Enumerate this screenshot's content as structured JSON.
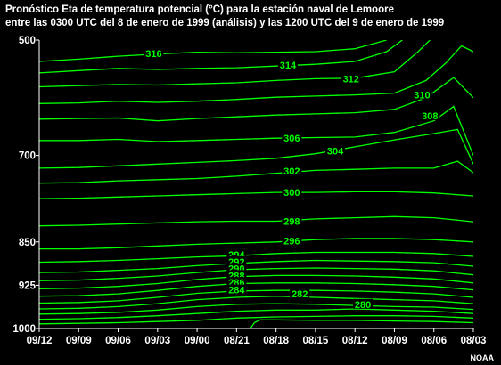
{
  "chart_data": {
    "type": "contour",
    "title_lines": [
      "Pronóstico Eta de temperatura potencial (°C) para la estación naval de Lemoore",
      "entre las 0300 UTC del 8 de enero de 1999 (análisis) y las 1200 UTC del 9 de enero de 1999"
    ],
    "x_tick_labels": [
      "09/12",
      "09/09",
      "09/06",
      "09/03",
      "09/00",
      "08/21",
      "08/18",
      "08/15",
      "08/12",
      "08/09",
      "08/06",
      "08/03"
    ],
    "y_tick_labels": [
      {
        "label": "500",
        "p": 500
      },
      {
        "label": "700",
        "p": 700
      },
      {
        "label": "850",
        "p": 850
      },
      {
        "label": "925",
        "p": 925
      },
      {
        "label": "1000",
        "p": 1000
      }
    ],
    "y_range": [
      500,
      1000
    ],
    "x_index_range": [
      0,
      11
    ],
    "colors": {
      "contour": "#00ff00",
      "axes": "#ffffff",
      "background": "#000000"
    },
    "contours": [
      {
        "label": "316",
        "label_at": [
          2.9,
          523
        ],
        "points": [
          [
            0,
            537
          ],
          [
            1,
            533
          ],
          [
            2,
            528
          ],
          [
            3,
            524
          ],
          [
            4,
            521
          ],
          [
            5,
            522
          ],
          [
            6,
            521
          ],
          [
            7,
            520
          ],
          [
            8,
            515
          ],
          [
            8.8,
            500
          ]
        ]
      },
      {
        "label": "314",
        "label_at": [
          6.3,
          543
        ],
        "points": [
          [
            0,
            557
          ],
          [
            1,
            553
          ],
          [
            2,
            549
          ],
          [
            3,
            551
          ],
          [
            4,
            549
          ],
          [
            5,
            548
          ],
          [
            6,
            545
          ],
          [
            7,
            542
          ],
          [
            8,
            537
          ],
          [
            8.8,
            520
          ],
          [
            9.2,
            500
          ]
        ]
      },
      {
        "label": "312",
        "label_at": [
          7.9,
          567
        ],
        "points": [
          [
            0,
            581
          ],
          [
            1,
            579
          ],
          [
            2,
            577
          ],
          [
            3,
            578
          ],
          [
            4,
            576
          ],
          [
            5,
            574
          ],
          [
            6,
            570
          ],
          [
            7,
            567
          ],
          [
            8,
            566
          ],
          [
            9,
            555
          ],
          [
            9.6,
            520
          ],
          [
            9.9,
            500
          ]
        ]
      },
      {
        "label": "310",
        "label_at": [
          9.7,
          595
        ],
        "points": [
          [
            0,
            610
          ],
          [
            1,
            609
          ],
          [
            2,
            606
          ],
          [
            3,
            608
          ],
          [
            4,
            606
          ],
          [
            5,
            603
          ],
          [
            6,
            599
          ],
          [
            7,
            597
          ],
          [
            8,
            595
          ],
          [
            9,
            592
          ],
          [
            9.8,
            570
          ],
          [
            10.3,
            540
          ],
          [
            10.7,
            510
          ],
          [
            11,
            520
          ]
        ]
      },
      {
        "label": "308",
        "label_at": [
          9.9,
          631
        ],
        "points": [
          [
            0,
            637
          ],
          [
            1,
            636
          ],
          [
            2,
            635
          ],
          [
            3,
            640
          ],
          [
            4,
            636
          ],
          [
            5,
            633
          ],
          [
            6,
            630
          ],
          [
            7,
            628
          ],
          [
            8,
            626
          ],
          [
            9,
            620
          ],
          [
            9.8,
            600
          ],
          [
            10.5,
            565
          ],
          [
            11,
            600
          ]
        ]
      },
      {
        "label": "306",
        "label_at": [
          6.4,
          670
        ],
        "points": [
          [
            0,
            674
          ],
          [
            1,
            674
          ],
          [
            2,
            672
          ],
          [
            3,
            676
          ],
          [
            4,
            674
          ],
          [
            5,
            672
          ],
          [
            6,
            670
          ],
          [
            7,
            669
          ],
          [
            8,
            668
          ],
          [
            9,
            660
          ],
          [
            10,
            640
          ],
          [
            10.5,
            615
          ],
          [
            11,
            700
          ]
        ]
      },
      {
        "label": "304",
        "label_at": [
          7.5,
          692
        ],
        "points": [
          [
            0,
            722
          ],
          [
            1,
            721
          ],
          [
            2,
            718
          ],
          [
            3,
            715
          ],
          [
            4,
            712
          ],
          [
            5,
            709
          ],
          [
            6,
            705
          ],
          [
            7,
            697
          ],
          [
            8,
            685
          ],
          [
            9,
            673
          ],
          [
            10,
            662
          ],
          [
            10.6,
            655
          ],
          [
            11,
            715
          ]
        ]
      },
      {
        "label": "302",
        "label_at": [
          6.4,
          727
        ],
        "points": [
          [
            0,
            748
          ],
          [
            1,
            747
          ],
          [
            2,
            744
          ],
          [
            3,
            742
          ],
          [
            4,
            740
          ],
          [
            5,
            736
          ],
          [
            6,
            731
          ],
          [
            7,
            726
          ],
          [
            8,
            724
          ],
          [
            9,
            722
          ],
          [
            10,
            722
          ],
          [
            10.6,
            710
          ],
          [
            11,
            730
          ]
        ]
      },
      {
        "label": "300",
        "label_at": [
          6.4,
          764
        ],
        "points": [
          [
            0,
            775
          ],
          [
            1,
            774
          ],
          [
            2,
            772
          ],
          [
            3,
            770
          ],
          [
            4,
            768
          ],
          [
            5,
            766
          ],
          [
            6,
            764
          ],
          [
            7,
            764
          ],
          [
            8,
            763
          ],
          [
            9,
            763
          ],
          [
            10,
            765
          ],
          [
            11,
            770
          ]
        ]
      },
      {
        "label": "298",
        "label_at": [
          6.4,
          814
        ],
        "points": [
          [
            0,
            822
          ],
          [
            1,
            821
          ],
          [
            2,
            819
          ],
          [
            3,
            817
          ],
          [
            4,
            815
          ],
          [
            5,
            814
          ],
          [
            6,
            814
          ],
          [
            7,
            810
          ],
          [
            8,
            808
          ],
          [
            9,
            806
          ],
          [
            10,
            808
          ],
          [
            11,
            815
          ]
        ]
      },
      {
        "label": "296",
        "label_at": [
          6.4,
          848
        ],
        "points": [
          [
            0,
            862
          ],
          [
            1,
            862
          ],
          [
            2,
            860
          ],
          [
            3,
            857
          ],
          [
            4,
            854
          ],
          [
            5,
            852
          ],
          [
            6,
            850
          ],
          [
            7,
            846
          ],
          [
            8,
            844
          ],
          [
            9,
            844
          ],
          [
            10,
            846
          ],
          [
            11,
            850
          ]
        ]
      },
      {
        "label": "294",
        "label_at": [
          5.0,
          872
        ],
        "points": [
          [
            0,
            885
          ],
          [
            1,
            884
          ],
          [
            2,
            882
          ],
          [
            3,
            879
          ],
          [
            4,
            876
          ],
          [
            5,
            874
          ],
          [
            6,
            870
          ],
          [
            7,
            868
          ],
          [
            8,
            868
          ],
          [
            9,
            868
          ],
          [
            10,
            870
          ],
          [
            11,
            875
          ]
        ]
      },
      {
        "label": "292",
        "label_at": [
          5.0,
          884
        ],
        "points": [
          [
            0,
            903
          ],
          [
            1,
            902
          ],
          [
            2,
            899
          ],
          [
            3,
            896
          ],
          [
            4,
            891
          ],
          [
            5,
            887
          ],
          [
            6,
            884
          ],
          [
            7,
            882
          ],
          [
            8,
            883
          ],
          [
            9,
            884
          ],
          [
            10,
            886
          ],
          [
            11,
            892
          ]
        ]
      },
      {
        "label": "290",
        "label_at": [
          5.0,
          896
        ],
        "points": [
          [
            0,
            917
          ],
          [
            1,
            916
          ],
          [
            2,
            913
          ],
          [
            3,
            909
          ],
          [
            4,
            903
          ],
          [
            5,
            898
          ],
          [
            6,
            896
          ],
          [
            7,
            895
          ],
          [
            8,
            896
          ],
          [
            9,
            897
          ],
          [
            10,
            900
          ],
          [
            11,
            907
          ]
        ]
      },
      {
        "label": "288",
        "label_at": [
          5.0,
          908
        ],
        "points": [
          [
            0,
            931
          ],
          [
            1,
            930
          ],
          [
            2,
            927
          ],
          [
            3,
            922
          ],
          [
            4,
            915
          ],
          [
            5,
            910
          ],
          [
            6,
            908
          ],
          [
            7,
            908
          ],
          [
            8,
            909
          ],
          [
            9,
            911
          ],
          [
            10,
            914
          ],
          [
            11,
            921
          ]
        ]
      },
      {
        "label": "286",
        "label_at": [
          5.0,
          920
        ],
        "points": [
          [
            0,
            944
          ],
          [
            1,
            943
          ],
          [
            2,
            940
          ],
          [
            3,
            934
          ],
          [
            4,
            927
          ],
          [
            5,
            922
          ],
          [
            6,
            921
          ],
          [
            7,
            921
          ],
          [
            8,
            922
          ],
          [
            9,
            924
          ],
          [
            10,
            927
          ],
          [
            11,
            933
          ]
        ]
      },
      {
        "label": "284",
        "label_at": [
          5.0,
          933
        ],
        "points": [
          [
            0,
            956
          ],
          [
            1,
            955
          ],
          [
            2,
            952
          ],
          [
            3,
            946
          ],
          [
            4,
            939
          ],
          [
            5,
            935
          ],
          [
            6,
            934
          ],
          [
            7,
            934
          ],
          [
            8,
            935
          ],
          [
            9,
            937
          ],
          [
            10,
            940
          ],
          [
            11,
            946
          ]
        ]
      },
      {
        "label": "282",
        "label_at": [
          6.6,
          940
        ],
        "points": [
          [
            0,
            966
          ],
          [
            1,
            965
          ],
          [
            2,
            962
          ],
          [
            3,
            957
          ],
          [
            4,
            950
          ],
          [
            5,
            946
          ],
          [
            6,
            944
          ],
          [
            7,
            946
          ],
          [
            8,
            948
          ],
          [
            9,
            950
          ],
          [
            10,
            952
          ],
          [
            11,
            957
          ]
        ]
      },
      {
        "label": "",
        "label_at": null,
        "points": [
          [
            0,
            975
          ],
          [
            1,
            974
          ],
          [
            2,
            972
          ],
          [
            3,
            968
          ],
          [
            4,
            962
          ],
          [
            5,
            958
          ],
          [
            6,
            957
          ],
          [
            7,
            958
          ],
          [
            8,
            960
          ],
          [
            9,
            962
          ],
          [
            10,
            963
          ],
          [
            11,
            967
          ]
        ]
      },
      {
        "label": "280",
        "label_at": [
          8.2,
          958
        ],
        "points": [
          [
            0,
            984
          ],
          [
            1,
            983
          ],
          [
            2,
            981
          ],
          [
            3,
            978
          ],
          [
            4,
            974
          ],
          [
            5,
            970
          ],
          [
            6,
            968
          ],
          [
            7,
            968
          ],
          [
            8,
            966
          ],
          [
            9,
            968
          ],
          [
            10,
            970
          ],
          [
            11,
            974
          ]
        ]
      },
      {
        "label": "",
        "label_at": null,
        "points": [
          [
            0,
            992
          ],
          [
            1,
            991
          ],
          [
            2,
            990
          ],
          [
            3,
            988
          ],
          [
            4,
            986
          ],
          [
            5,
            982
          ],
          [
            6,
            980
          ],
          [
            7,
            979
          ],
          [
            8,
            978
          ],
          [
            9,
            978
          ],
          [
            10,
            979
          ],
          [
            11,
            982
          ]
        ]
      },
      {
        "label": "",
        "label_at": null,
        "points": [
          [
            5.35,
            1000
          ],
          [
            5.45,
            990
          ],
          [
            5.6,
            985
          ],
          [
            6,
            985
          ],
          [
            7,
            986
          ],
          [
            8,
            986
          ],
          [
            9,
            987
          ],
          [
            10,
            988
          ],
          [
            11,
            990
          ]
        ]
      }
    ]
  },
  "credit": "NOAA"
}
